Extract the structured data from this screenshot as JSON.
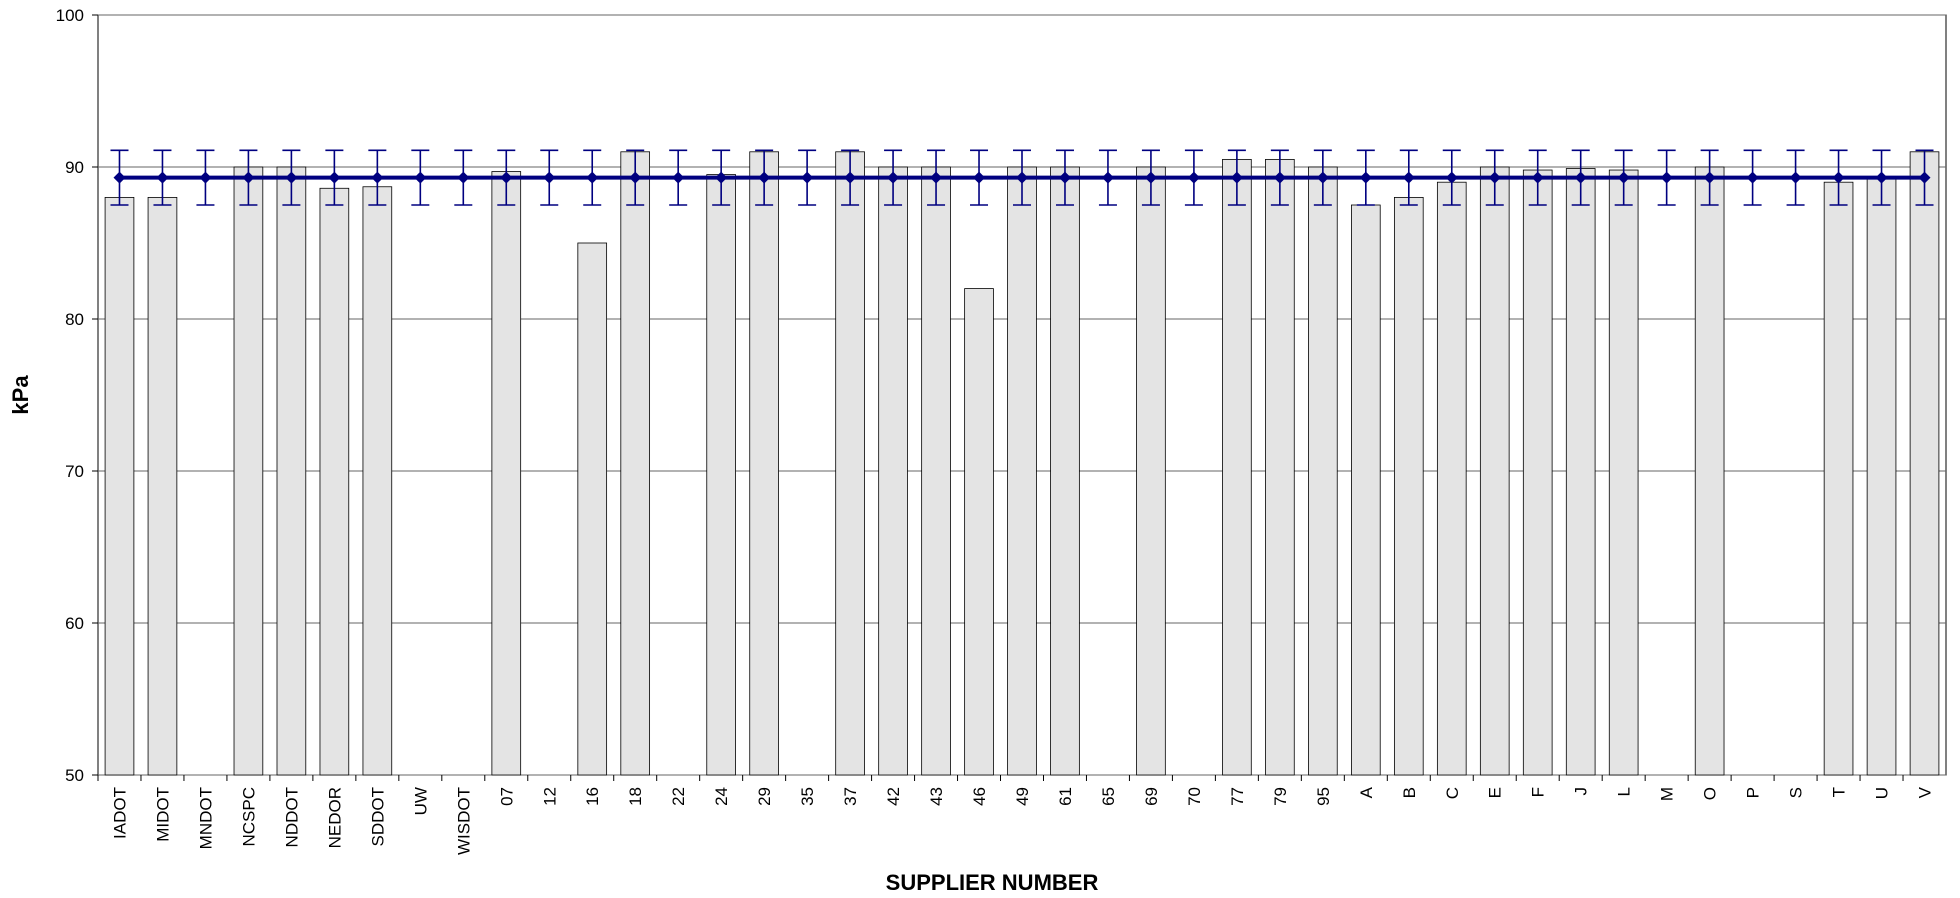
{
  "chart_data": {
    "type": "bar",
    "y_label": "kPa",
    "x_label": "SUPPLIER NUMBER",
    "categories": [
      "IADOT",
      "MIDOT",
      "MNDOT",
      "NCSPC",
      "NDDOT",
      "NEDOR",
      "SDDOT",
      "UW",
      "WISDOT",
      "07",
      "12",
      "16",
      "18",
      "22",
      "24",
      "29",
      "35",
      "37",
      "42",
      "43",
      "46",
      "49",
      "61",
      "65",
      "69",
      "70",
      "77",
      "79",
      "95",
      "A",
      "B",
      "C",
      "E",
      "F",
      "J",
      "L",
      "M",
      "O",
      "P",
      "S",
      "T",
      "U",
      "V"
    ],
    "series": [
      {
        "type": "bar",
        "color": "#e4e4e4",
        "values": [
          88,
          88,
          null,
          90,
          90,
          88.6,
          88.7,
          null,
          null,
          89.7,
          null,
          85,
          91,
          null,
          89.5,
          91,
          null,
          91,
          90,
          90,
          82,
          90,
          90,
          null,
          90,
          null,
          90.5,
          90.5,
          90,
          87.5,
          88,
          89,
          90,
          89.8,
          89.9,
          89.8,
          null,
          90,
          null,
          null,
          89,
          89.3,
          91
        ]
      },
      {
        "type": "line",
        "color": "#000080",
        "error": 1.8,
        "values": [
          89.3,
          89.3,
          89.3,
          89.3,
          89.3,
          89.3,
          89.3,
          89.3,
          89.3,
          89.3,
          89.3,
          89.3,
          89.3,
          89.3,
          89.3,
          89.3,
          89.3,
          89.3,
          89.3,
          89.3,
          89.3,
          89.3,
          89.3,
          89.3,
          89.3,
          89.3,
          89.3,
          89.3,
          89.3,
          89.3,
          89.3,
          89.3,
          89.3,
          89.3,
          89.3,
          89.3,
          89.3,
          89.3,
          89.3,
          89.3,
          89.3,
          89.3,
          89.3
        ]
      }
    ],
    "ylim": [
      50,
      100
    ],
    "yticks": [
      50,
      60,
      70,
      80,
      90,
      100
    ],
    "grid": true
  }
}
